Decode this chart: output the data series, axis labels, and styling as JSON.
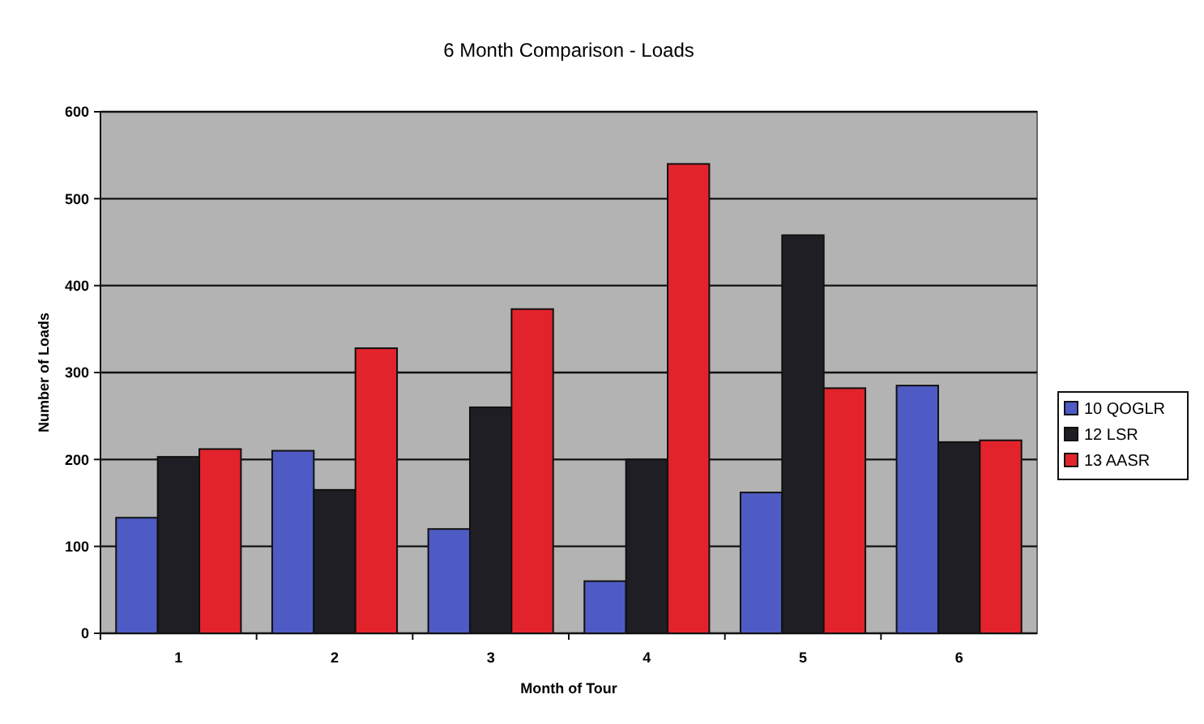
{
  "chart_data": {
    "type": "bar",
    "title": "6 Month Comparison - Loads",
    "xlabel": "Month of Tour",
    "ylabel": "Number of Loads",
    "categories": [
      "1",
      "2",
      "3",
      "4",
      "5",
      "6"
    ],
    "series": [
      {
        "name": "10 QOGLR",
        "color": "#4f5bc4",
        "values": [
          133,
          210,
          120,
          60,
          162,
          285
        ]
      },
      {
        "name": "12 LSR",
        "color": "#1e1e24",
        "values": [
          203,
          165,
          260,
          200,
          458,
          220
        ]
      },
      {
        "name": "13 AASR",
        "color": "#e3232b",
        "values": [
          212,
          328,
          373,
          540,
          282,
          222
        ]
      }
    ],
    "ylim": [
      0,
      600
    ],
    "yticks": [
      0,
      100,
      200,
      300,
      400,
      500,
      600
    ],
    "grid": "y",
    "legend": "right"
  }
}
